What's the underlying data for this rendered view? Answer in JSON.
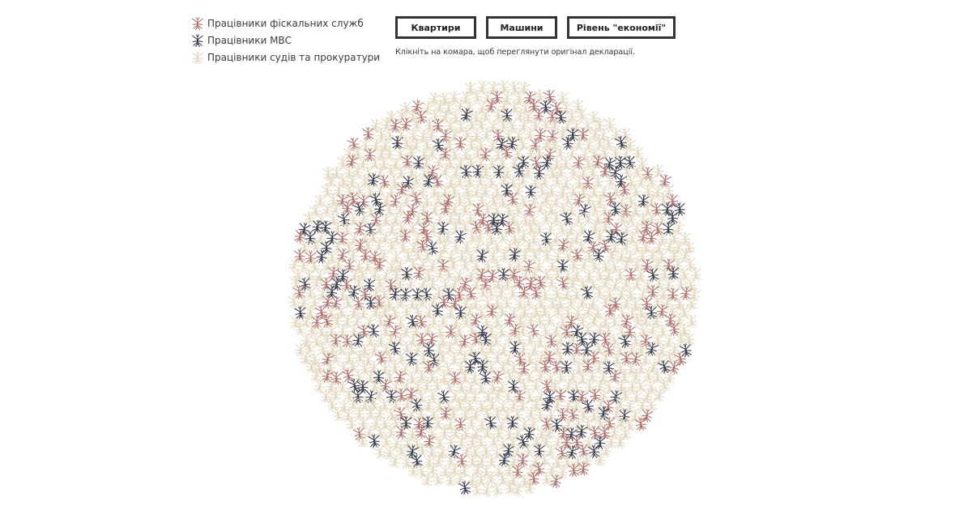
{
  "legend": {
    "items": [
      {
        "key": "fiscal",
        "label": "Працівники фіскальних служб",
        "color": "#b0746e",
        "icon": "mosquito-icon"
      },
      {
        "key": "mvs",
        "label": "Працівники МВС",
        "color": "#3b3f4c",
        "icon": "mosquito-icon"
      },
      {
        "key": "courts",
        "label": "Працівники судів та прокуратури",
        "color": "#e3d7bd",
        "icon": "mosquito-icon"
      }
    ]
  },
  "buttons": {
    "flats": "Квартири",
    "cars": "Машини",
    "economy": "Рівень \"економії\""
  },
  "hint": "Клікніть на комара, щоб переглянути оригінал декларації.",
  "swarm_share": {
    "fiscal": 0.16,
    "mvs": 0.11,
    "courts": 0.73
  }
}
